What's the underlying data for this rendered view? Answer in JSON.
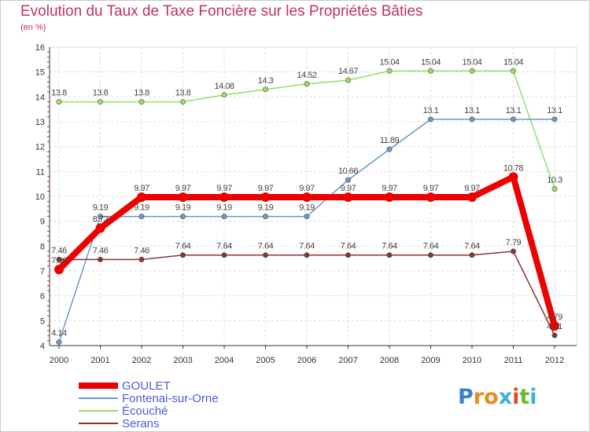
{
  "chart_data": {
    "type": "line",
    "title": "Evolution du Taux de Taxe Foncière sur les Propriétés Bâties",
    "subtitle": "(en %)",
    "xlabel": "",
    "ylabel": "",
    "ylim": [
      4,
      16
    ],
    "yticks": [
      "4",
      "5",
      "6",
      "7",
      "8",
      "9",
      "10",
      "11",
      "12",
      "13",
      "14",
      "15",
      "16"
    ],
    "categories": [
      "2000",
      "2001",
      "2002",
      "2003",
      "2004",
      "2005",
      "2006",
      "2007",
      "2008",
      "2009",
      "2010",
      "2011",
      "2012"
    ],
    "series": [
      {
        "name": "GOULET",
        "color": "#ee0000",
        "values": [
          7.06,
          8.72,
          9.97,
          9.97,
          9.97,
          9.97,
          9.97,
          9.97,
          9.97,
          9.97,
          9.97,
          10.78,
          4.79
        ],
        "labels": [
          "7.06",
          "8.72",
          "9.97",
          "9.97",
          "9.97",
          "9.97",
          "9.97",
          "9.97",
          "9.97",
          "9.97",
          "9.97",
          "10.78",
          "4.79"
        ]
      },
      {
        "name": "Fontenai-sur-Orne",
        "color": "#6699cc",
        "values": [
          4.14,
          9.19,
          9.19,
          9.19,
          9.19,
          9.19,
          9.19,
          10.66,
          11.89,
          13.1,
          13.1,
          13.1,
          13.1
        ],
        "labels": [
          "4.14",
          "9.19",
          "9.19",
          "9.19",
          "9.19",
          "9.19",
          "9.19",
          "10.66",
          "11.89",
          "13.1",
          "13.1",
          "13.1",
          "13.1"
        ]
      },
      {
        "name": "Écouché",
        "color": "#99dd66",
        "values": [
          13.8,
          13.8,
          13.8,
          13.8,
          14.08,
          14.3,
          14.52,
          14.67,
          15.04,
          15.04,
          15.04,
          15.04,
          10.3
        ],
        "labels": [
          "13.8",
          "13.8",
          "13.8",
          "13.8",
          "14.08",
          "14.3",
          "14.52",
          "14.67",
          "15.04",
          "15.04",
          "15.04",
          "15.04",
          "10.3"
        ]
      },
      {
        "name": "Serans",
        "color": "#883333",
        "values": [
          7.46,
          7.46,
          7.46,
          7.64,
          7.64,
          7.64,
          7.64,
          7.64,
          7.64,
          7.64,
          7.64,
          7.79,
          4.41
        ],
        "labels": [
          "7.46",
          "7.46",
          "7.46",
          "7.64",
          "7.64",
          "7.64",
          "7.64",
          "7.64",
          "7.64",
          "7.64",
          "7.64",
          "7.79",
          "4.41"
        ]
      }
    ],
    "legend": "bottom-left",
    "grid": true
  },
  "logo": {
    "letters": [
      "P",
      "r",
      "o",
      "x",
      "i",
      "t",
      "i"
    ]
  }
}
